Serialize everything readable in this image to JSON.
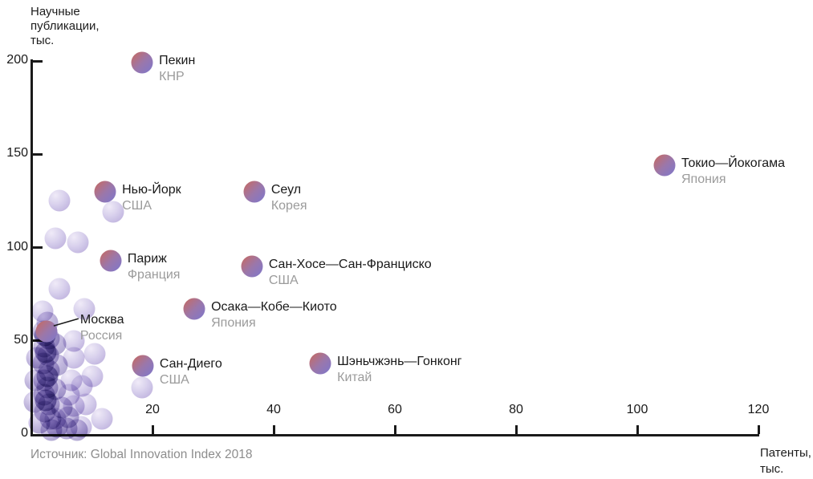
{
  "source": {
    "text": "Источник: Global Innovation Index 2018"
  },
  "chart_data": {
    "type": "scatter",
    "title": "",
    "xlabel": "Патенты, тыс.",
    "ylabel": "Научные публикации, тыс.",
    "xlabel_lines": [
      "Патенты,",
      "тыс."
    ],
    "ylabel_lines": [
      "Научные",
      "публикации,",
      "тыс."
    ],
    "xlim": [
      0,
      120
    ],
    "ylim": [
      0,
      200
    ],
    "xticks": [
      20,
      40,
      60,
      80,
      100,
      120
    ],
    "yticks": [
      0,
      50,
      100,
      150,
      200
    ],
    "grid": false,
    "legend": false,
    "series": [
      {
        "name": "highlighted-cities",
        "points": [
          {
            "city": "Пекин",
            "country": "КНР",
            "patents": 18.3,
            "publications": 199
          },
          {
            "city": "Токио—Йокогама",
            "country": "Япония",
            "patents": 104.5,
            "publications": 144
          },
          {
            "city": "Нью-Йорк",
            "country": "США",
            "patents": 12.2,
            "publications": 130
          },
          {
            "city": "Сеул",
            "country": "Корея",
            "patents": 36.8,
            "publications": 130
          },
          {
            "city": "Париж",
            "country": "Франция",
            "patents": 13.1,
            "publications": 93
          },
          {
            "city": "Сан-Хосе—Сан-Франциско",
            "country": "США",
            "patents": 36.4,
            "publications": 90
          },
          {
            "city": "Осака—Кобе—Киото",
            "country": "Япония",
            "patents": 26.9,
            "publications": 67
          },
          {
            "city": "Москва",
            "country": "Россия",
            "patents": 2.5,
            "publications": 55,
            "callout": true
          },
          {
            "city": "Сан-Диего",
            "country": "США",
            "patents": 18.4,
            "publications": 36.5
          },
          {
            "city": "Шэньчжэнь—Гонконг",
            "country": "Китай",
            "patents": 47.7,
            "publications": 38
          }
        ]
      }
    ],
    "background_points": [
      {
        "x": 4.6,
        "y": 125,
        "s": "light"
      },
      {
        "x": 4.0,
        "y": 105,
        "s": "light"
      },
      {
        "x": 7.7,
        "y": 103,
        "s": "light"
      },
      {
        "x": 13.5,
        "y": 119,
        "s": "light"
      },
      {
        "x": 4.6,
        "y": 78,
        "s": "light"
      },
      {
        "x": 1.8,
        "y": 66,
        "s": "light"
      },
      {
        "x": 8.8,
        "y": 67,
        "s": "light"
      },
      {
        "x": 7.0,
        "y": 50,
        "s": "light"
      },
      {
        "x": 18.3,
        "y": 25,
        "s": "light"
      },
      {
        "x": 7.0,
        "y": 41,
        "s": "light"
      },
      {
        "x": 10.4,
        "y": 43,
        "s": "light"
      },
      {
        "x": 6.6,
        "y": 29,
        "s": "light"
      },
      {
        "x": 10.0,
        "y": 31,
        "s": "light"
      },
      {
        "x": 6.2,
        "y": 21,
        "s": "light"
      },
      {
        "x": 7.0,
        "y": 15,
        "s": "light"
      },
      {
        "x": 9.0,
        "y": 16,
        "s": "light"
      },
      {
        "x": 8.2,
        "y": 4,
        "s": "light"
      },
      {
        "x": 4.0,
        "y": 8,
        "s": "light"
      },
      {
        "x": 8.4,
        "y": 26,
        "s": "light"
      },
      {
        "x": 11.6,
        "y": 8,
        "s": "light"
      },
      {
        "x": 2.7,
        "y": 60,
        "s": "mid"
      },
      {
        "x": 2.0,
        "y": 55,
        "s": "mid"
      },
      {
        "x": 2.9,
        "y": 51,
        "s": "mid"
      },
      {
        "x": 2.1,
        "y": 47,
        "s": "mid"
      },
      {
        "x": 2.8,
        "y": 42,
        "s": "mid"
      },
      {
        "x": 2.0,
        "y": 38,
        "s": "mid"
      },
      {
        "x": 2.9,
        "y": 34,
        "s": "mid"
      },
      {
        "x": 2.1,
        "y": 29,
        "s": "mid"
      },
      {
        "x": 2.7,
        "y": 25,
        "s": "mid"
      },
      {
        "x": 2.1,
        "y": 21,
        "s": "mid"
      },
      {
        "x": 2.9,
        "y": 16,
        "s": "mid"
      },
      {
        "x": 2.3,
        "y": 12,
        "s": "mid"
      },
      {
        "x": 3.2,
        "y": 8,
        "s": "mid"
      },
      {
        "x": 4.3,
        "y": 4,
        "s": "mid"
      },
      {
        "x": 5.8,
        "y": 3,
        "s": "mid"
      },
      {
        "x": 7.6,
        "y": 2,
        "s": "mid"
      },
      {
        "x": 0.9,
        "y": 41,
        "s": "mid"
      },
      {
        "x": 0.7,
        "y": 29,
        "s": "mid"
      },
      {
        "x": 0.5,
        "y": 17,
        "s": "mid"
      },
      {
        "x": 4.0,
        "y": 48,
        "s": "mid"
      },
      {
        "x": 4.3,
        "y": 37,
        "s": "mid"
      },
      {
        "x": 4.0,
        "y": 24,
        "s": "mid"
      },
      {
        "x": 5.0,
        "y": 14,
        "s": "mid"
      },
      {
        "x": 6.1,
        "y": 9,
        "s": "mid"
      },
      {
        "x": 1.3,
        "y": 6,
        "s": "mid"
      },
      {
        "x": 3.3,
        "y": 2,
        "s": "mid"
      },
      {
        "x": 2.4,
        "y": 44,
        "s": "dark"
      },
      {
        "x": 2.6,
        "y": 31,
        "s": "dark"
      },
      {
        "x": 2.4,
        "y": 18,
        "s": "dark"
      },
      {
        "x": 2.2,
        "y": 53,
        "s": "dark"
      }
    ]
  }
}
